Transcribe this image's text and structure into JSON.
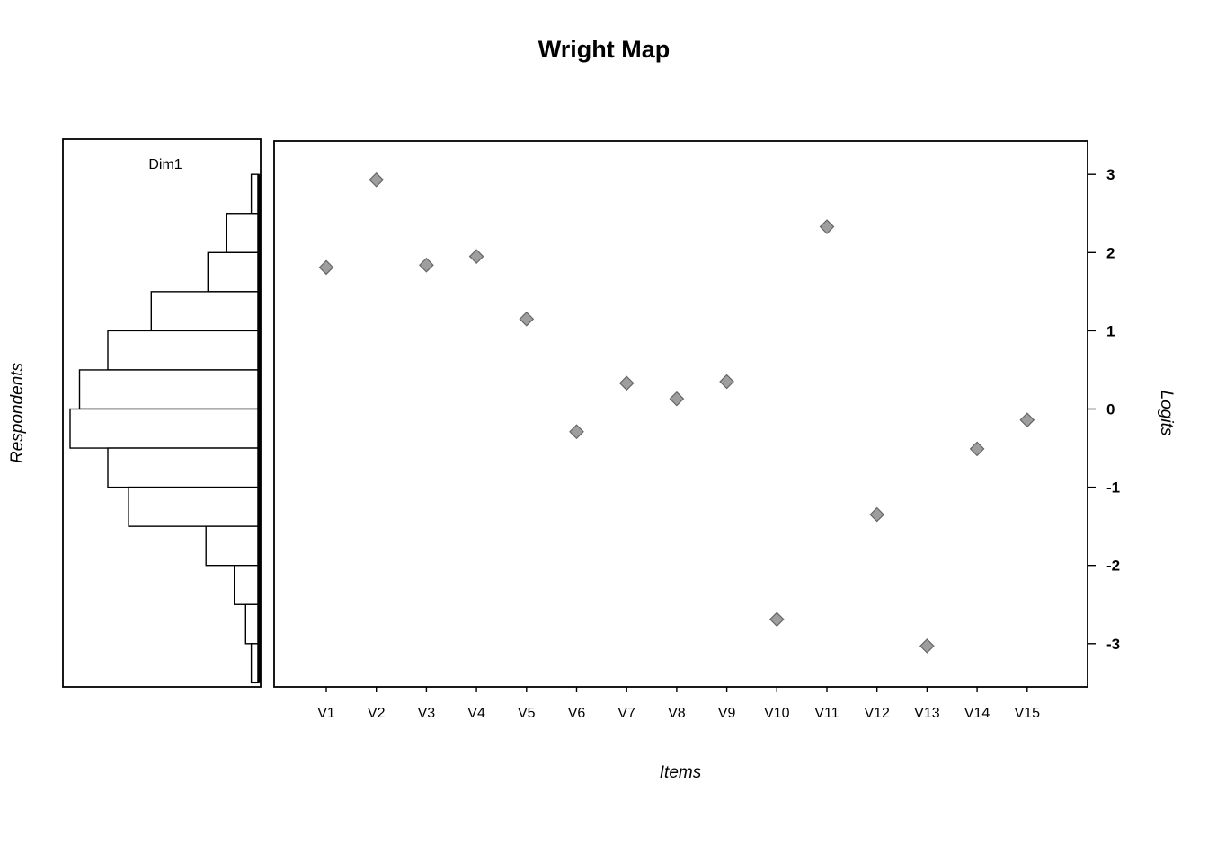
{
  "title": "Wright Map",
  "chart_data": [
    {
      "type": "scatter",
      "panel": "items",
      "xlabel": "Items",
      "ylabel": "Logits",
      "categories": [
        "V1",
        "V2",
        "V3",
        "V4",
        "V5",
        "V6",
        "V7",
        "V8",
        "V9",
        "V10",
        "V11",
        "V12",
        "V13",
        "V14",
        "V15"
      ],
      "values": [
        1.81,
        2.93,
        1.84,
        1.95,
        1.15,
        -0.29,
        0.33,
        0.13,
        0.35,
        -2.69,
        2.33,
        -1.35,
        -3.03,
        -0.51,
        -0.14
      ],
      "ylim": [
        -3.56,
        3.42
      ],
      "yticks": [
        3,
        2,
        1,
        0,
        -1,
        -2,
        -3
      ],
      "ytick_labels": [
        "3",
        "2",
        "1",
        "0",
        "-1",
        "-2",
        "-3"
      ],
      "marker": "diamond",
      "marker_fill": "#9e9e9e",
      "marker_stroke": "#666666",
      "grid": false,
      "legend": "none",
      "yaxis_side": "right"
    },
    {
      "type": "histogram",
      "panel": "respondents",
      "title": "Dim1",
      "ylabel": "Respondents",
      "orientation": "horizontal-left",
      "bin_width": 0.5,
      "bin_upper_edges": [
        3.0,
        2.5,
        2.0,
        1.5,
        1.0,
        0.5,
        0.0,
        -0.5,
        -1.0,
        -1.5,
        -2.0,
        -2.5,
        -3.0
      ],
      "rel_counts": [
        0.04,
        0.17,
        0.27,
        0.57,
        0.8,
        0.95,
        1.0,
        0.8,
        0.69,
        0.28,
        0.13,
        0.07,
        0.04
      ],
      "ylim": [
        -3.56,
        3.42
      ]
    }
  ],
  "colors": {
    "background": "#ffffff",
    "axis": "#000000",
    "marker_fill": "#9e9e9e",
    "marker_stroke": "#666666",
    "bar_fill": "#ffffff",
    "bar_stroke": "#000000"
  }
}
